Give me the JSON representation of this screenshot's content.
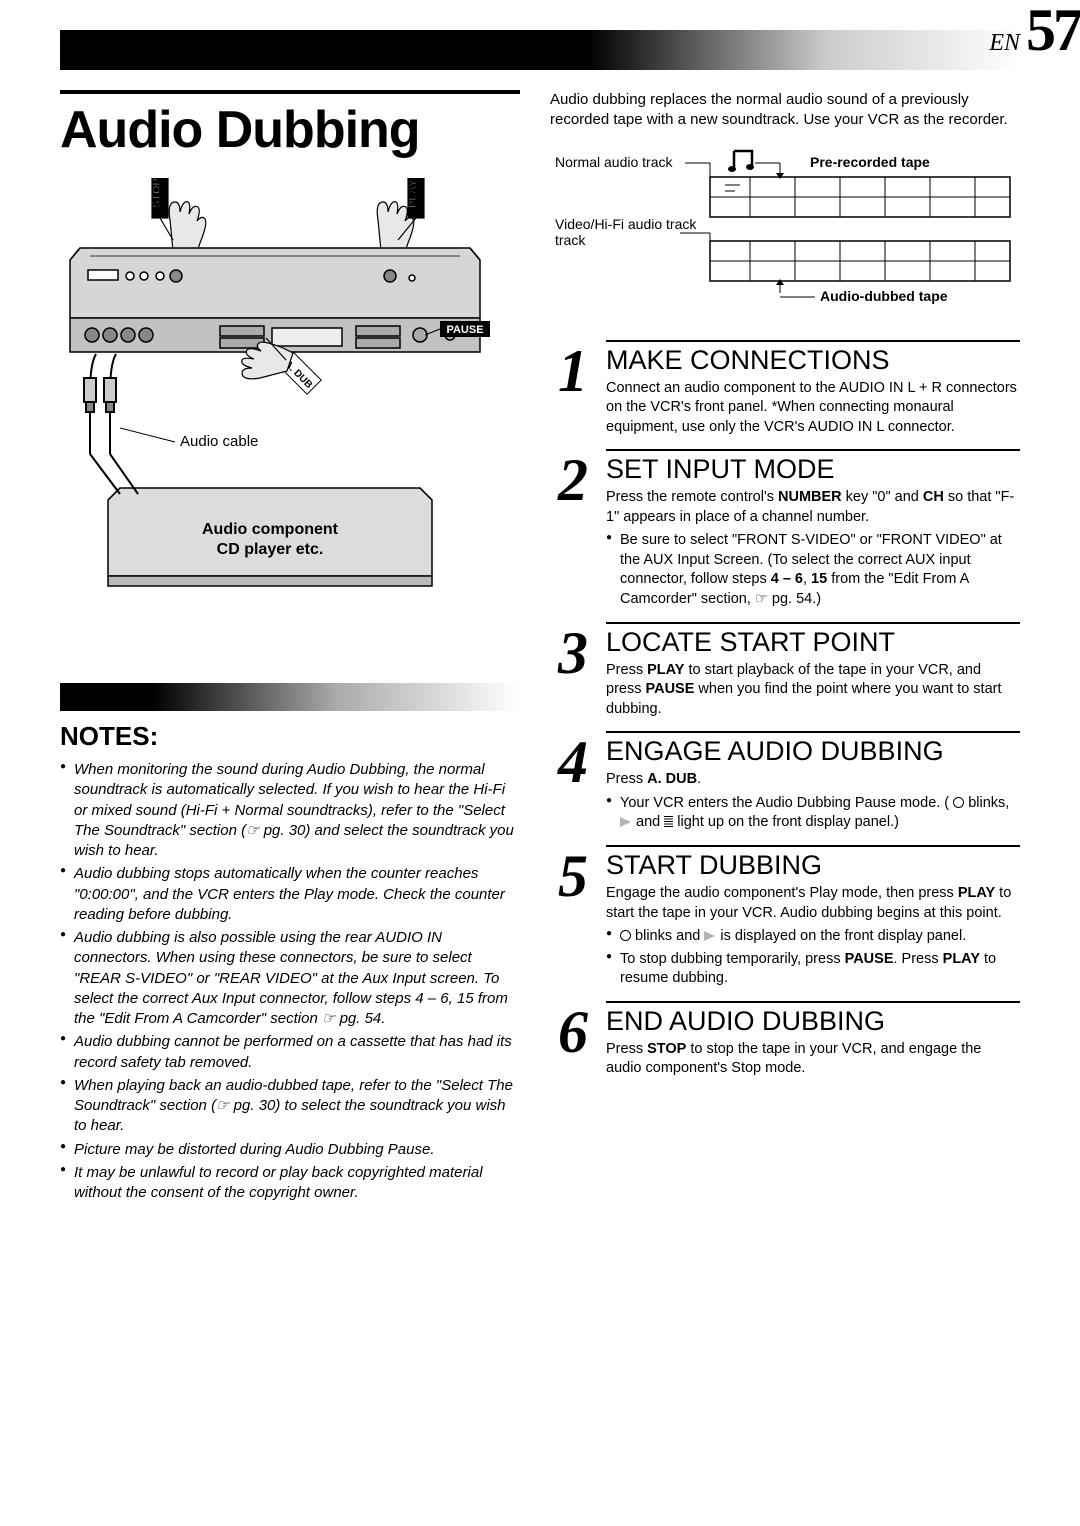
{
  "page": {
    "lang": "EN",
    "number": "57"
  },
  "title": "Audio Dubbing",
  "intro": "Audio dubbing replaces the normal audio sound of a previously recorded tape with a new soundtrack. Use your VCR as the recorder.",
  "diagram": {
    "stop_label": "STOP",
    "play_label": "PLAY",
    "pause_label": "PAUSE",
    "adub_label": "A. DUB",
    "audio_cable": "Audio cable",
    "component_line1": "Audio component",
    "component_line2": "CD player etc."
  },
  "track_diagram": {
    "normal_track": "Normal audio track",
    "hifi_track": "Video/Hi-Fi audio track",
    "prerecorded": "Pre-recorded tape",
    "dubbed": "Audio-dubbed tape"
  },
  "notes_heading": "NOTES:",
  "notes": [
    "When monitoring the sound during Audio Dubbing, the normal soundtrack is automatically selected. If you wish to hear the Hi-Fi or mixed sound (Hi-Fi + Normal soundtracks), refer to the \"Select The Soundtrack\" section (☞ pg. 30) and select the soundtrack you wish to hear.",
    "Audio dubbing stops automatically when the counter reaches \"0:00:00\", and the VCR enters the Play mode. Check the counter reading before dubbing.",
    "Audio dubbing is also possible using the rear AUDIO IN connectors. When using these connectors, be sure to select \"REAR S-VIDEO\" or \"REAR VIDEO\" at the Aux Input screen. To select the correct Aux Input connector, follow steps 4 – 6, 15 from the \"Edit From A Camcorder\" section ☞ pg. 54.",
    "Audio dubbing cannot be performed on a cassette that has had its record safety tab removed.",
    "When playing back an audio-dubbed tape, refer to the \"Select The Soundtrack\" section (☞ pg. 30) to select the soundtrack you wish to hear.",
    "Picture may be distorted during Audio Dubbing Pause.",
    "It may be unlawful to record or play back copyrighted material without the consent of the copyright owner."
  ],
  "steps": [
    {
      "num": "1",
      "title": "MAKE CONNECTIONS",
      "body_html": "Connect an audio component to the AUDIO IN L + R connectors on the VCR's front panel. *When connecting monaural equipment, use only the VCR's AUDIO IN L connector.",
      "bullets": []
    },
    {
      "num": "2",
      "title": "SET INPUT MODE",
      "body_html": "Press the remote control's <b>NUMBER</b> key \"0\" and <b>CH</b> so that \"F-1\" appears in place of a channel number.",
      "bullets": [
        "Be sure to select \"FRONT S-VIDEO\" or \"FRONT VIDEO\" at the AUX Input Screen. (To select the correct AUX input connector, follow steps <b>4 – 6</b>, <b>15</b> from the \"Edit From A Camcorder\" section, ☞ pg. 54.)"
      ]
    },
    {
      "num": "3",
      "title": "LOCATE START POINT",
      "body_html": "Press <b>PLAY</b> to start playback of the tape in your VCR, and press <b>PAUSE</b> when you find the point where you want to start dubbing.",
      "bullets": []
    },
    {
      "num": "4",
      "title": "ENGAGE AUDIO DUBBING",
      "body_html": "Press <b>A. DUB</b>.",
      "bullets": [
        "Your VCR enters the Audio Dubbing Pause mode. ( <span class=\"symbol-circle\"></span> blinks, <span class=\"symbol-play2\"></span> and <span class=\"symbol-bars\"></span> light up on the front display panel.)"
      ]
    },
    {
      "num": "5",
      "title": "START DUBBING",
      "body_html": "Engage the audio component's Play mode, then press <b>PLAY</b> to start the tape in your VCR. Audio dubbing begins at this point.",
      "bullets": [
        "<span class=\"symbol-circle\"></span> blinks and <span class=\"symbol-play2\"></span> is displayed on the front display panel.",
        "To stop dubbing temporarily, press <b>PAUSE</b>. Press <b>PLAY</b> to resume dubbing."
      ]
    },
    {
      "num": "6",
      "title": "END AUDIO DUBBING",
      "body_html": "Press <b>STOP</b> to stop the tape in your VCR, and engage the audio component's Stop mode.",
      "bullets": []
    }
  ]
}
